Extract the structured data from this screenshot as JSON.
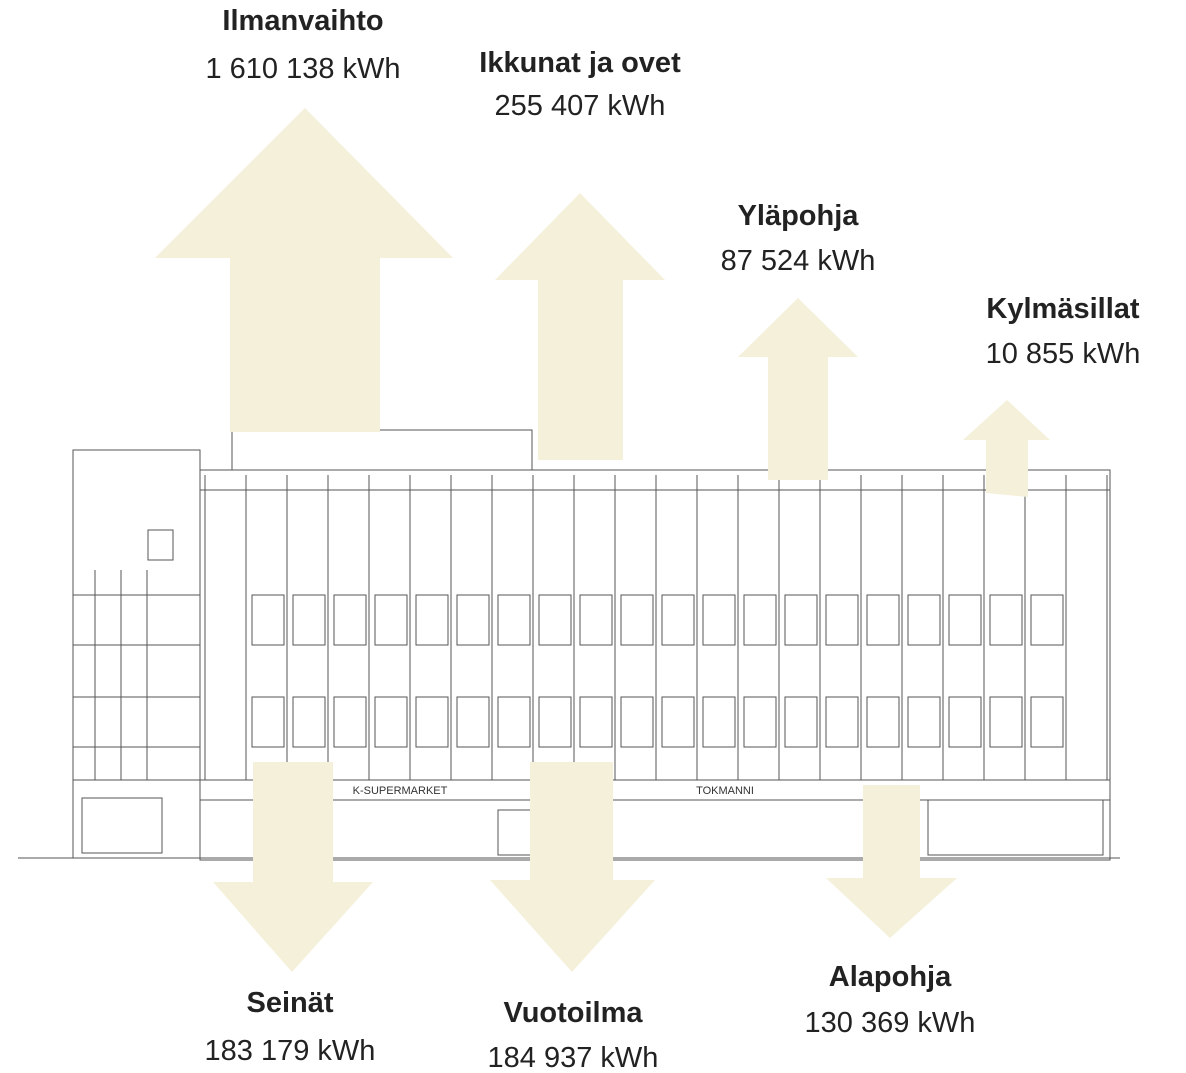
{
  "flows": [
    {
      "label": "Ilmanvaihto",
      "value": "1 610 138 kWh"
    },
    {
      "label": "Ikkunat ja ovet",
      "value": "255 407 kWh"
    },
    {
      "label": "Yläpohja",
      "value": "87 524 kWh"
    },
    {
      "label": "Kylmäsillat",
      "value": "10 855 kWh"
    },
    {
      "label": "Seinät",
      "value": "183 179 kWh"
    },
    {
      "label": "Vuotoilma",
      "value": "184 937 kWh"
    },
    {
      "label": "Alapohja",
      "value": "130 369 kWh"
    }
  ],
  "signs": [
    "K-SUPERMARKET",
    "TOKMANNI"
  ]
}
